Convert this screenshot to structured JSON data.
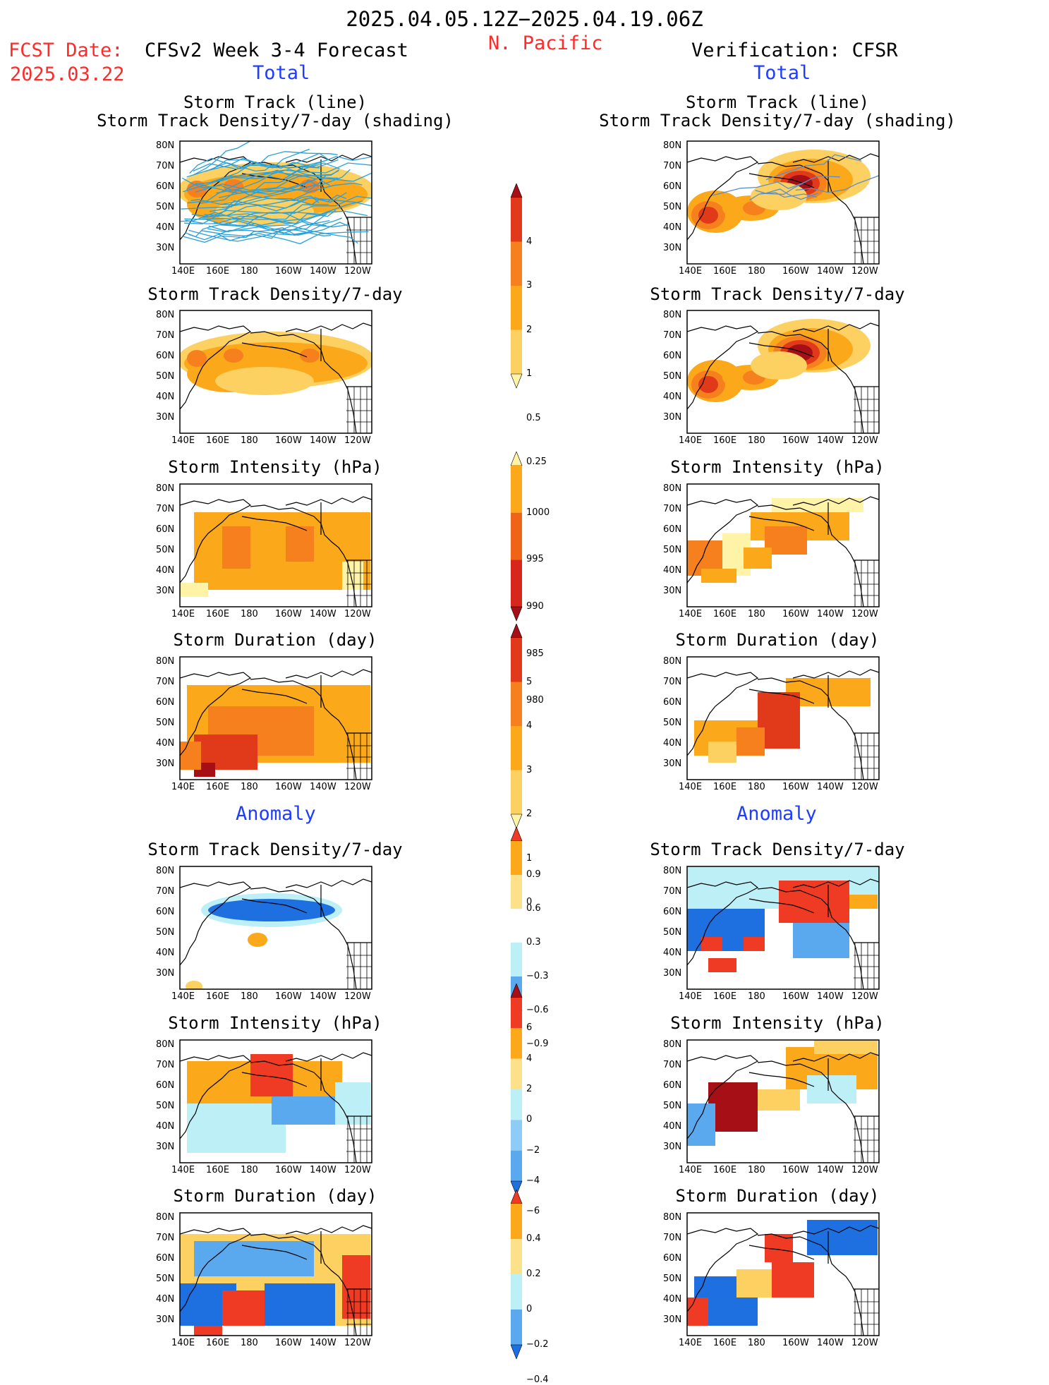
{
  "header": {
    "date_range": "2025.04.05.12Z−2025.04.19.06Z",
    "region": "N. Pacific",
    "fcst_label": "FCST Date:",
    "fcst_date": "2025.03.22",
    "forecast_title": "CFSv2 Week 3-4 Forecast",
    "verification_title": "Verification: CFSR"
  },
  "section_labels": {
    "total": "Total",
    "anomaly": "Anomaly"
  },
  "panel_titles": {
    "track_line": "Storm Track (line)",
    "track_shading": "Storm Track Density/7-day (shading)",
    "density": "Storm Track Density/7-day",
    "intensity": "Storm Intensity (hPa)",
    "duration": "Storm Duration (day)"
  },
  "map_axes": {
    "lat_labels": [
      "80N",
      "70N",
      "60N",
      "50N",
      "40N",
      "30N"
    ],
    "lon_labels": [
      "140E",
      "160E",
      "180",
      "160W",
      "140W",
      "120W"
    ]
  },
  "colorbars": {
    "density_total": {
      "labels": [
        "4",
        "3",
        "2",
        "1",
        "0.5",
        "0.25"
      ],
      "colors": [
        "#a50f15",
        "#e03a1a",
        "#f7801e",
        "#fba81b",
        "#fdd062",
        "#fff3a8"
      ]
    },
    "intensity_total": {
      "labels": [
        "1000",
        "995",
        "990",
        "985",
        "980"
      ],
      "colors": [
        "#fff3a8",
        "#fba81b",
        "#f06418",
        "#d7261c",
        "#a50f15"
      ]
    },
    "duration_total": {
      "labels": [
        "5",
        "4",
        "3",
        "2",
        "1",
        "0"
      ],
      "colors": [
        "#a50f15",
        "#e03a1a",
        "#f7801e",
        "#fba81b",
        "#fdd062",
        "#fff3a8"
      ]
    },
    "density_anom": {
      "labels": [
        "0.9",
        "0.6",
        "0.3",
        "−0.3",
        "−0.6",
        "−0.9"
      ],
      "colors": [
        "#ef3b24",
        "#fba81b",
        "#fde08a",
        "#ffffff",
        "#bdeff7",
        "#5aa9ef",
        "#1e6fe0"
      ]
    },
    "intensity_anom": {
      "labels": [
        "6",
        "4",
        "2",
        "0",
        "−2",
        "−4",
        "−6"
      ],
      "colors": [
        "#a50f15",
        "#ef3b24",
        "#fba81b",
        "#fde08a",
        "#bdeff7",
        "#8fcbf7",
        "#5aa9ef",
        "#1e6fe0"
      ]
    },
    "duration_anom": {
      "labels": [
        "0.4",
        "0.2",
        "0",
        "−0.2",
        "−0.4"
      ],
      "colors": [
        "#ef3b24",
        "#fba81b",
        "#fde08a",
        "#bdeff7",
        "#5aa9ef",
        "#1e6fe0"
      ]
    }
  }
}
